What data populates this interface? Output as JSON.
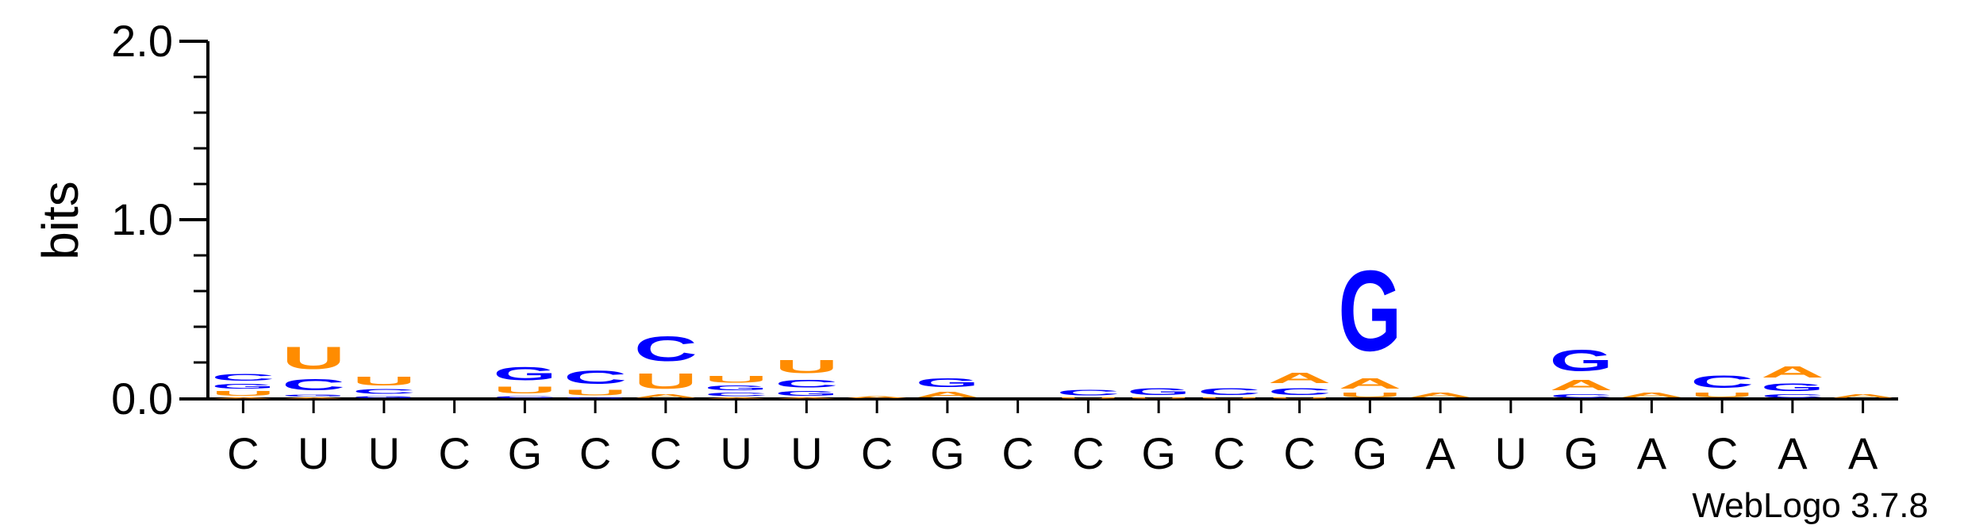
{
  "chart_data": {
    "type": "sequence-logo",
    "title": "",
    "ylabel": "bits",
    "xlabel": "",
    "ylim": [
      0,
      2.0
    ],
    "yticks": [
      "0.0",
      "1.0",
      "2.0"
    ],
    "credit": "WebLogo 3.7.8",
    "colors": {
      "A": "#ff8c00",
      "U": "#ff8c00",
      "C": "#0000ff",
      "G": "#0000ff"
    },
    "consensus": [
      "C",
      "U",
      "U",
      "C",
      "G",
      "C",
      "C",
      "U",
      "U",
      "C",
      "G",
      "C",
      "C",
      "G",
      "C",
      "C",
      "G",
      "A",
      "U",
      "G",
      "A",
      "C",
      "A",
      "A"
    ],
    "positions": [
      [
        {
          "base": "A",
          "bits": 0.01
        },
        {
          "base": "U",
          "bits": 0.04
        },
        {
          "base": "G",
          "bits": 0.04
        },
        {
          "base": "C",
          "bits": 0.06
        }
      ],
      [
        {
          "base": "A",
          "bits": 0.01
        },
        {
          "base": "G",
          "bits": 0.02
        },
        {
          "base": "C",
          "bits": 0.1
        },
        {
          "base": "U",
          "bits": 0.2
        }
      ],
      [
        {
          "base": "G",
          "bits": 0.02
        },
        {
          "base": "C",
          "bits": 0.04
        },
        {
          "base": "U",
          "bits": 0.08
        }
      ],
      [],
      [
        {
          "base": "C",
          "bits": 0.02
        },
        {
          "base": "U",
          "bits": 0.06
        },
        {
          "base": "G",
          "bits": 0.12
        }
      ],
      [
        {
          "base": "G",
          "bits": 0.01
        },
        {
          "base": "U",
          "bits": 0.05
        },
        {
          "base": "C",
          "bits": 0.12
        }
      ],
      [
        {
          "base": "A",
          "bits": 0.03
        },
        {
          "base": "U",
          "bits": 0.14
        },
        {
          "base": "C",
          "bits": 0.22
        }
      ],
      [
        {
          "base": "A",
          "bits": 0.01
        },
        {
          "base": "C",
          "bits": 0.03
        },
        {
          "base": "G",
          "bits": 0.04
        },
        {
          "base": "U",
          "bits": 0.06
        }
      ],
      [
        {
          "base": "A",
          "bits": 0.01
        },
        {
          "base": "G",
          "bits": 0.04
        },
        {
          "base": "C",
          "bits": 0.07
        },
        {
          "base": "U",
          "bits": 0.12
        }
      ],
      [
        {
          "base": "A",
          "bits": 0.02
        }
      ],
      [
        {
          "base": "A",
          "bits": 0.05
        },
        {
          "base": "G",
          "bits": 0.08
        }
      ],
      [],
      [
        {
          "base": "U",
          "bits": 0.01
        },
        {
          "base": "C",
          "bits": 0.05
        }
      ],
      [
        {
          "base": "U",
          "bits": 0.01
        },
        {
          "base": "G",
          "bits": 0.06
        }
      ],
      [
        {
          "base": "U",
          "bits": 0.01
        },
        {
          "base": "C",
          "bits": 0.06
        }
      ],
      [
        {
          "base": "U",
          "bits": 0.01
        },
        {
          "base": "C",
          "bits": 0.06
        },
        {
          "base": "A",
          "bits": 0.09
        }
      ],
      [
        {
          "base": "U",
          "bits": 0.04
        },
        {
          "base": "A",
          "bits": 0.09
        },
        {
          "base": "G",
          "bits": 0.72
        }
      ],
      [
        {
          "base": "A",
          "bits": 0.04
        }
      ],
      [],
      [
        {
          "base": "C",
          "bits": 0.03
        },
        {
          "base": "A",
          "bits": 0.09
        },
        {
          "base": "G",
          "bits": 0.19
        }
      ],
      [
        {
          "base": "A",
          "bits": 0.04
        }
      ],
      [
        {
          "base": "U",
          "bits": 0.04
        },
        {
          "base": "C",
          "bits": 0.11
        }
      ],
      [
        {
          "base": "C",
          "bits": 0.03
        },
        {
          "base": "G",
          "bits": 0.07
        },
        {
          "base": "A",
          "bits": 0.1
        }
      ],
      [
        {
          "base": "A",
          "bits": 0.03
        }
      ]
    ]
  }
}
